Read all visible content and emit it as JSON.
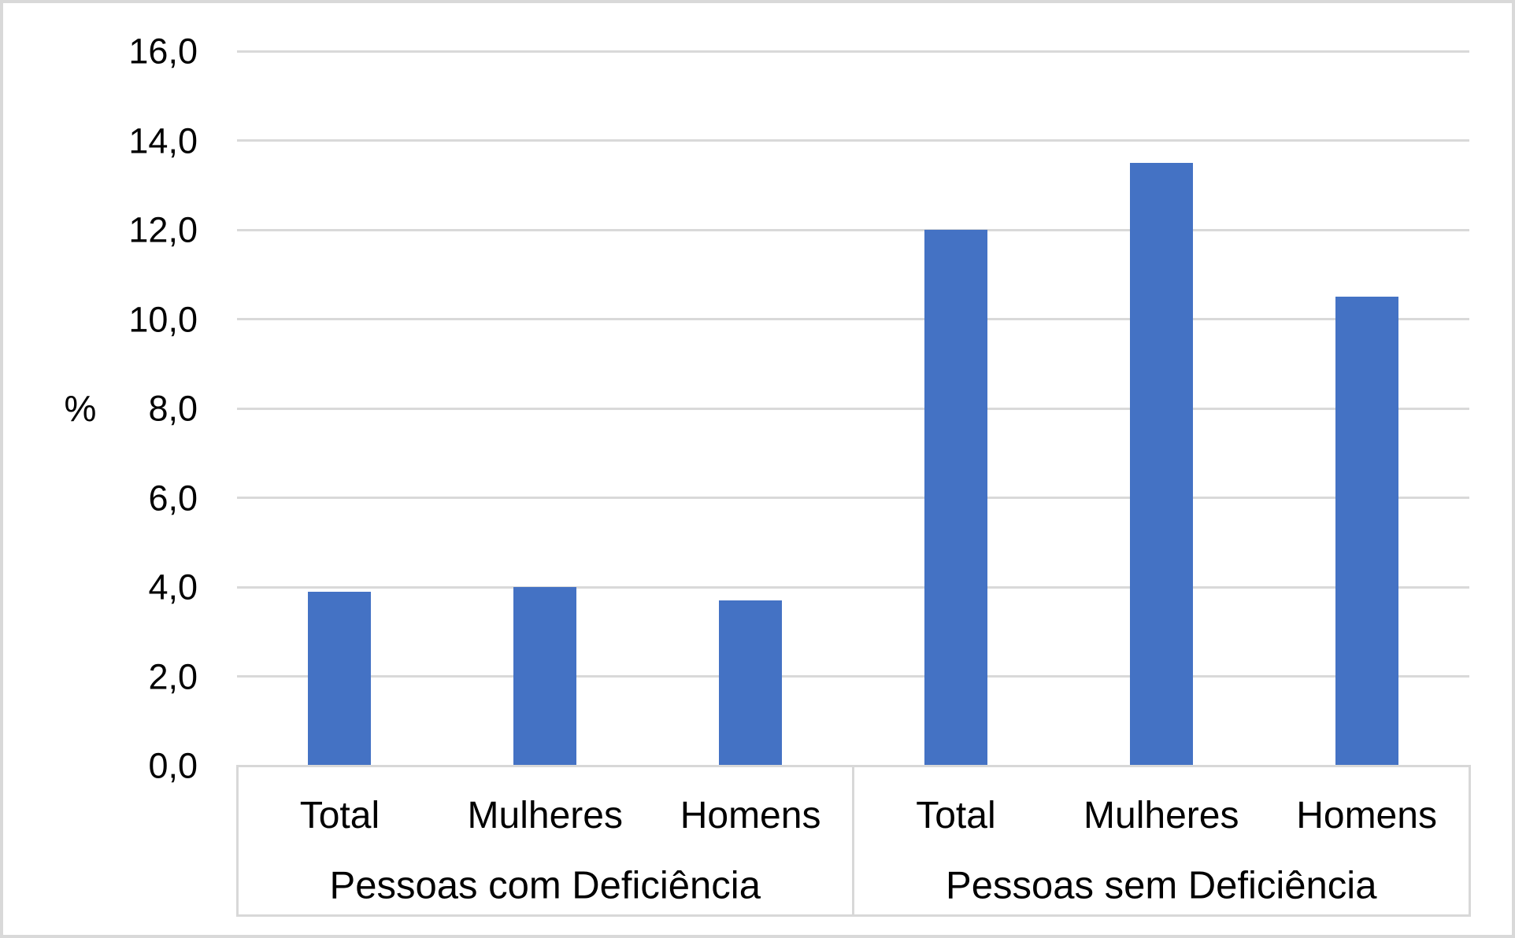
{
  "chart_data": {
    "type": "bar",
    "title": "",
    "ylabel": "%",
    "xlabel": "",
    "ylim": [
      0,
      16
    ],
    "ytick_step": 2,
    "ytick_labels": [
      "0,0",
      "2,0",
      "4,0",
      "6,0",
      "8,0",
      "10,0",
      "12,0",
      "14,0",
      "16,0"
    ],
    "decimal_separator": ",",
    "grid": true,
    "legend_position": "none",
    "bar_color": "#4472C4",
    "gridline_color": "#D9D9D9",
    "axis_box_color": "#D8D8D8",
    "groups": [
      {
        "label": "Pessoas com Deficiência",
        "categories": [
          "Total",
          "Mulheres",
          "Homens"
        ],
        "values": [
          3.9,
          4.0,
          3.7
        ]
      },
      {
        "label": "Pessoas sem Deficiência",
        "categories": [
          "Total",
          "Mulheres",
          "Homens"
        ],
        "values": [
          12.0,
          13.5,
          10.5
        ]
      }
    ]
  }
}
